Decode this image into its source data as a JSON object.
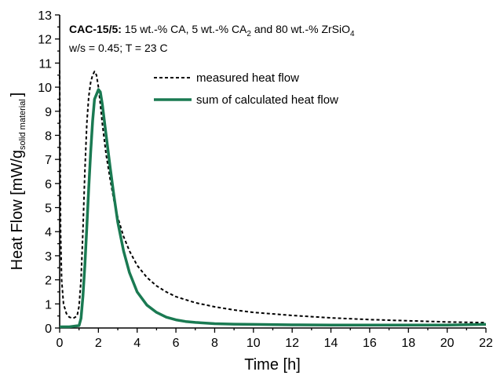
{
  "chart_data": {
    "type": "line",
    "title_bold": "CAC-15/5:",
    "title_rest": " 15 wt.-% CA, 5 wt.-% CA",
    "title_rest_sub": "2",
    "title_rest2": " and 80 wt.-% ZrSiO",
    "title_rest2_sub": "4",
    "subtitle": "w/s = 0.45; T = 23 C",
    "xlabel": "Time [h]",
    "ylabel_main": "Heat Flow [mW/g",
    "ylabel_sub": "solid material",
    "ylabel_end": "]",
    "xlim": [
      0,
      22
    ],
    "ylim": [
      0,
      13
    ],
    "xticks": [
      "0",
      "2",
      "4",
      "6",
      "8",
      "10",
      "12",
      "14",
      "16",
      "18",
      "20",
      "22"
    ],
    "yticks": [
      "0",
      "1",
      "2",
      "3",
      "4",
      "5",
      "6",
      "7",
      "8",
      "9",
      "10",
      "11",
      "12",
      "13"
    ],
    "legend_position": "top-center",
    "series": [
      {
        "name": "measured heat flow",
        "color": "#000000",
        "style": "dashed",
        "x": [
          0,
          0.02,
          0.05,
          0.1,
          0.2,
          0.35,
          0.5,
          0.7,
          0.9,
          1.0,
          1.1,
          1.2,
          1.3,
          1.4,
          1.5,
          1.6,
          1.7,
          1.8,
          1.9,
          2.0,
          2.1,
          2.2,
          2.4,
          2.6,
          2.8,
          3.0,
          3.3,
          3.6,
          4.0,
          4.5,
          5.0,
          5.5,
          6.0,
          7.0,
          8.0,
          9.0,
          10.0,
          12.0,
          14.0,
          16.0,
          18.0,
          20.0,
          22.0
        ],
        "y": [
          10.7,
          8.0,
          4.0,
          2.0,
          1.0,
          0.6,
          0.45,
          0.4,
          0.5,
          0.9,
          2.0,
          4.0,
          6.5,
          8.5,
          9.6,
          10.2,
          10.5,
          10.65,
          10.5,
          10.0,
          9.3,
          8.5,
          7.2,
          6.2,
          5.3,
          4.6,
          3.8,
          3.2,
          2.6,
          2.1,
          1.75,
          1.5,
          1.3,
          1.05,
          0.88,
          0.75,
          0.65,
          0.52,
          0.42,
          0.35,
          0.3,
          0.25,
          0.22
        ]
      },
      {
        "name": "sum of calculated heat flow",
        "color": "#1a7a52",
        "style": "solid",
        "x": [
          0,
          0.5,
          1.0,
          1.1,
          1.2,
          1.3,
          1.4,
          1.5,
          1.6,
          1.7,
          1.8,
          1.9,
          2.0,
          2.1,
          2.2,
          2.4,
          2.6,
          2.8,
          3.0,
          3.3,
          3.6,
          4.0,
          4.5,
          5.0,
          5.5,
          6.0,
          6.5,
          7.0,
          8.0,
          9.0,
          10.0,
          12.0,
          14.0,
          16.0,
          18.0,
          20.0,
          22.0
        ],
        "y": [
          0.05,
          0.05,
          0.1,
          0.4,
          1.3,
          2.6,
          4.2,
          5.8,
          7.3,
          8.6,
          9.5,
          9.7,
          9.9,
          9.8,
          9.3,
          8.0,
          6.7,
          5.5,
          4.4,
          3.2,
          2.3,
          1.5,
          0.95,
          0.65,
          0.45,
          0.34,
          0.27,
          0.23,
          0.18,
          0.16,
          0.15,
          0.13,
          0.12,
          0.12,
          0.12,
          0.12,
          0.15
        ]
      }
    ]
  }
}
